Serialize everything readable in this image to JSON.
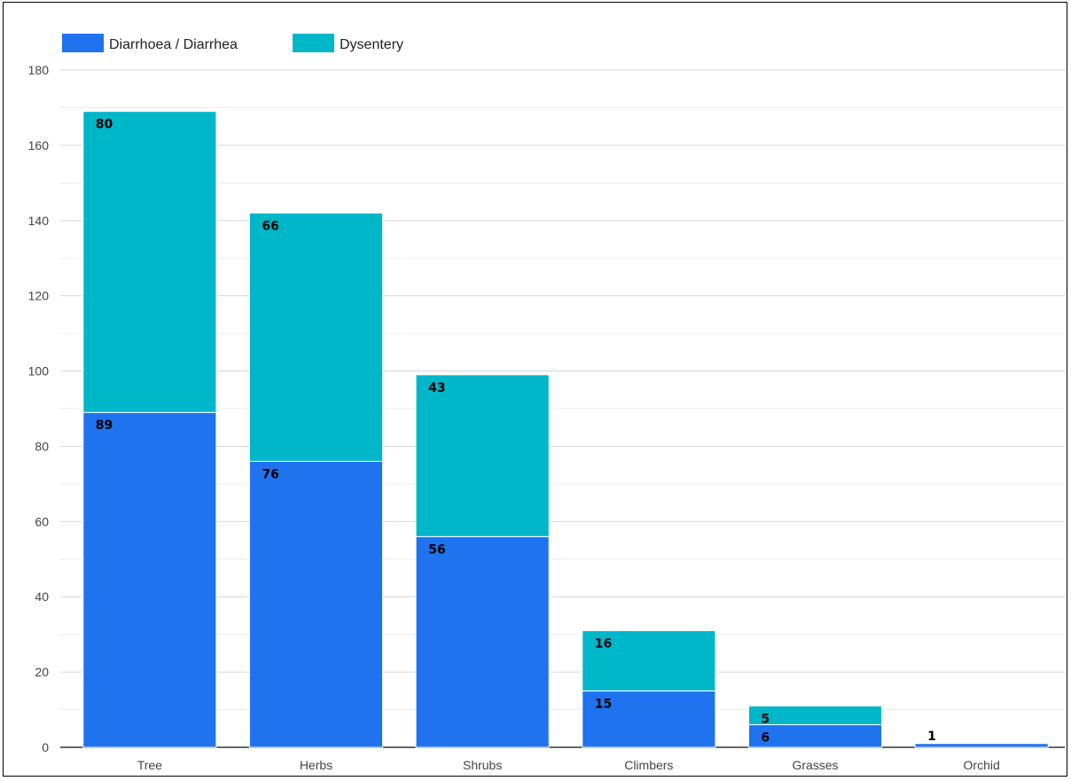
{
  "chart_data": {
    "type": "bar",
    "stacked": true,
    "title": "",
    "xlabel": "",
    "ylabel": "",
    "categories": [
      "Tree",
      "Herbs",
      "Shrubs",
      "Climbers",
      "Grasses",
      "Orchid"
    ],
    "series": [
      {
        "name": "Diarrhoea / Diarrhea",
        "color": "#1f73ef",
        "values": [
          89,
          76,
          56,
          15,
          6,
          1
        ]
      },
      {
        "name": "Dysentery",
        "color": "#00b6c9",
        "values": [
          80,
          66,
          43,
          16,
          5,
          0
        ]
      }
    ],
    "data_labels": [
      [
        "89",
        "76",
        "56",
        "15",
        "6",
        "1"
      ],
      [
        "80",
        "66",
        "43",
        "16",
        "5",
        ""
      ]
    ],
    "ylim": [
      0,
      180
    ],
    "yticks": [
      0,
      20,
      40,
      60,
      80,
      100,
      120,
      140,
      160,
      180
    ],
    "grid": true,
    "minor_grid": true,
    "legend_position": "top-left"
  }
}
